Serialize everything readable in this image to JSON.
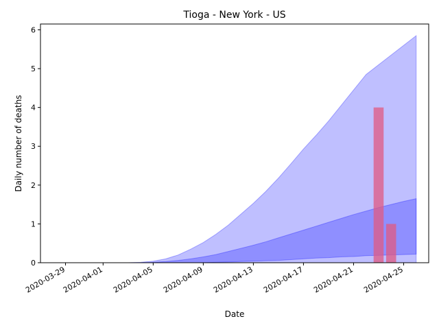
{
  "chart_data": {
    "type": "area",
    "title": "Tioga - New York - US",
    "xlabel": "Date",
    "ylabel": "Daily number of deaths",
    "xlim": [
      "2020-03-27",
      "2020-04-27"
    ],
    "ylim": [
      0,
      6.15
    ],
    "x_ticks": [
      "2020-03-29",
      "2020-04-01",
      "2020-04-05",
      "2020-04-09",
      "2020-04-13",
      "2020-04-17",
      "2020-04-21",
      "2020-04-25"
    ],
    "y_ticks": [
      0,
      1,
      2,
      3,
      4,
      5,
      6
    ],
    "grid": false,
    "colors": {
      "band": "#0000ff",
      "bar": "#e05a82"
    },
    "band_dates": [
      "2020-03-29",
      "2020-03-30",
      "2020-03-31",
      "2020-04-01",
      "2020-04-02",
      "2020-04-03",
      "2020-04-04",
      "2020-04-05",
      "2020-04-06",
      "2020-04-07",
      "2020-04-08",
      "2020-04-09",
      "2020-04-10",
      "2020-04-11",
      "2020-04-12",
      "2020-04-13",
      "2020-04-14",
      "2020-04-15",
      "2020-04-16",
      "2020-04-17",
      "2020-04-18",
      "2020-04-19",
      "2020-04-20",
      "2020-04-21",
      "2020-04-22",
      "2020-04-23",
      "2020-04-24",
      "2020-04-25",
      "2020-04-26"
    ],
    "bands": [
      {
        "lower": [
          0,
          0,
          0,
          0,
          0,
          0,
          0,
          0,
          0,
          0,
          0,
          0,
          0.01,
          0.02,
          0.03,
          0.04,
          0.05,
          0.06,
          0.08,
          0.1,
          0.12,
          0.13,
          0.15,
          0.16,
          0.18,
          0.19,
          0.2,
          0.21,
          0.22
        ],
        "upper": [
          0,
          0,
          0,
          0,
          0,
          0,
          0.01,
          0.04,
          0.1,
          0.2,
          0.35,
          0.52,
          0.73,
          0.97,
          1.25,
          1.53,
          1.84,
          2.18,
          2.55,
          2.93,
          3.28,
          3.65,
          4.05,
          4.45,
          4.85,
          5.1,
          5.35,
          5.6,
          5.85
        ]
      },
      {
        "lower": [
          0,
          0,
          0,
          0,
          0,
          0,
          0,
          0,
          0,
          0,
          0,
          0,
          0,
          0,
          0,
          0,
          0,
          0,
          0,
          0,
          0,
          0,
          0,
          0,
          0,
          0,
          0,
          0,
          0
        ],
        "upper": [
          0,
          0,
          0,
          0,
          0,
          0,
          0,
          0.01,
          0.03,
          0.06,
          0.1,
          0.15,
          0.21,
          0.29,
          0.37,
          0.45,
          0.54,
          0.64,
          0.74,
          0.84,
          0.94,
          1.04,
          1.14,
          1.24,
          1.33,
          1.42,
          1.5,
          1.58,
          1.65
        ]
      }
    ],
    "bars": [
      {
        "date": "2020-04-23",
        "value": 4
      },
      {
        "date": "2020-04-24",
        "value": 1
      }
    ]
  }
}
